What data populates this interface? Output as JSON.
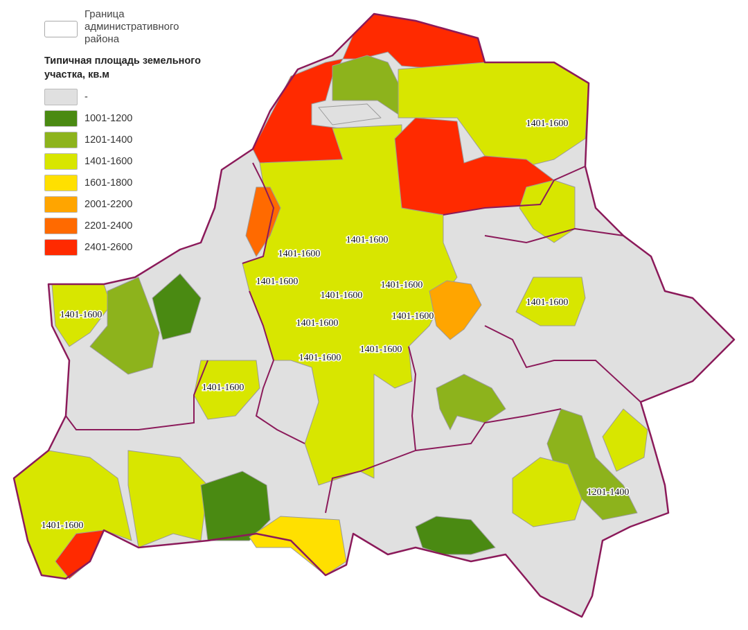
{
  "legend": {
    "border_label": "Граница административного района",
    "title": "Типичная площадь земельного участка, кв.м",
    "classes": [
      {
        "label": "-",
        "color": "#e0e0e0"
      },
      {
        "label": "1001-1200",
        "color": "#4a8a12"
      },
      {
        "label": "1201-1400",
        "color": "#8db31c"
      },
      {
        "label": "1401-1600",
        "color": "#d8e600"
      },
      {
        "label": "1601-1800",
        "color": "#ffe000"
      },
      {
        "label": "2001-2200",
        "color": "#ffa500"
      },
      {
        "label": "2201-2400",
        "color": "#ff6a00"
      },
      {
        "label": "2401-2600",
        "color": "#ff2a00"
      }
    ]
  },
  "map": {
    "region_border_color": "#8b1a5a",
    "district_border_color": "#9a9a9a",
    "labels": [
      "1401-1600",
      "1401-1600",
      "1401-1600",
      "1401-1600",
      "1401-1600",
      "1401-1600",
      "1401-1600",
      "1401-1600",
      "1401-1600",
      "1401-1600",
      "1401-1600",
      "1401-1600",
      "1401-1600",
      "1201-1400",
      "1401-1600"
    ]
  }
}
